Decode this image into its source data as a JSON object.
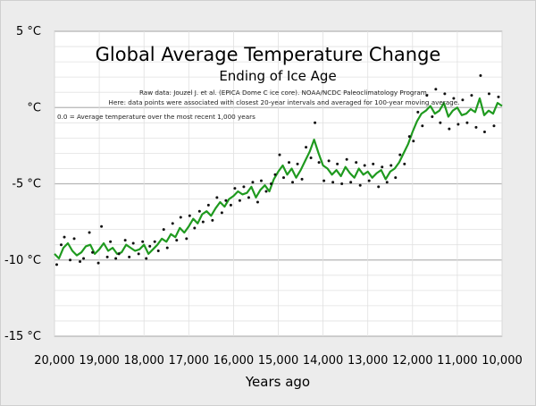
{
  "chart_data": {
    "type": "line",
    "title": "Global Average Temperature Change",
    "subtitle": "Ending of Ice Age",
    "notes": [
      "Raw data: Jouzel J. et al. (EPICA Dome C ice core). NOAA/NCDC Paleoclimatology Program.",
      "Here: data points were associated with closest 20-year intervals and averaged for 100-year moving average."
    ],
    "baseline_note": "0.0 = Average temperature over the most recent 1,000 years",
    "xlabel": "Years ago",
    "ylabel": "",
    "xlim": [
      20000,
      10000
    ],
    "ylim": [
      -15,
      5
    ],
    "x_reversed": true,
    "x_ticks": [
      20000,
      19000,
      18000,
      17000,
      16000,
      15000,
      14000,
      13000,
      12000,
      11000,
      10000
    ],
    "x_tick_labels": [
      "20,000",
      "19,000",
      "18,000",
      "17,000",
      "16,000",
      "15,000",
      "14,000",
      "13,000",
      "12,000",
      "11,000",
      "10,000"
    ],
    "y_ticks": [
      5,
      0,
      -5,
      -10,
      -15
    ],
    "y_tick_labels": [
      "5 °C",
      "°C",
      "-5 °C",
      "-10 °C",
      "-15 °C"
    ],
    "grid": true,
    "legend": "none",
    "series": [
      {
        "kind": "line",
        "color": "#1f9a1f",
        "x": [
          20000,
          19900,
          19800,
          19700,
          19600,
          19500,
          19400,
          19300,
          19200,
          19100,
          19000,
          18900,
          18800,
          18700,
          18600,
          18500,
          18400,
          18300,
          18200,
          18100,
          18000,
          17900,
          17800,
          17700,
          17600,
          17500,
          17400,
          17300,
          17200,
          17100,
          17000,
          16900,
          16800,
          16700,
          16600,
          16500,
          16400,
          16300,
          16200,
          16100,
          16000,
          15900,
          15800,
          15700,
          15600,
          15500,
          15400,
          15300,
          15200,
          15100,
          15000,
          14900,
          14800,
          14700,
          14600,
          14500,
          14400,
          14300,
          14200,
          14100,
          14000,
          13900,
          13800,
          13700,
          13600,
          13500,
          13400,
          13300,
          13200,
          13100,
          13000,
          12900,
          12800,
          12700,
          12600,
          12500,
          12400,
          12300,
          12200,
          12100,
          12000,
          11900,
          11800,
          11700,
          11600,
          11500,
          11400,
          11300,
          11200,
          11100,
          11000,
          10900,
          10800,
          10700,
          10600,
          10500,
          10400,
          10300,
          10200,
          10100,
          10000
        ],
        "y": [
          -9.6,
          -9.9,
          -9.2,
          -8.9,
          -9.4,
          -9.7,
          -9.5,
          -9.1,
          -9.0,
          -9.6,
          -9.3,
          -8.9,
          -9.4,
          -9.2,
          -9.6,
          -9.5,
          -9.0,
          -9.2,
          -9.4,
          -9.3,
          -9.0,
          -9.6,
          -9.3,
          -9.0,
          -8.6,
          -8.8,
          -8.3,
          -8.5,
          -7.9,
          -8.2,
          -7.8,
          -7.3,
          -7.6,
          -7.0,
          -6.8,
          -7.1,
          -6.6,
          -6.2,
          -6.5,
          -6.0,
          -5.8,
          -5.5,
          -5.7,
          -5.6,
          -5.2,
          -5.9,
          -5.4,
          -5.1,
          -5.5,
          -4.7,
          -4.2,
          -3.8,
          -4.4,
          -4.0,
          -4.6,
          -4.1,
          -3.5,
          -2.9,
          -2.1,
          -3.0,
          -3.8,
          -4.0,
          -4.4,
          -4.1,
          -4.5,
          -3.9,
          -4.3,
          -4.6,
          -4.0,
          -4.4,
          -4.2,
          -4.6,
          -4.3,
          -4.1,
          -4.7,
          -4.2,
          -4.0,
          -3.6,
          -3.0,
          -2.4,
          -1.6,
          -0.9,
          -0.4,
          -0.2,
          0.1,
          -0.4,
          -0.2,
          0.3,
          -0.6,
          -0.2,
          0.0,
          -0.5,
          -0.4,
          -0.1,
          -0.3,
          0.6,
          -0.5,
          -0.2,
          -0.4,
          0.3,
          0.1
        ]
      },
      {
        "kind": "scatter",
        "color": "#111111",
        "x": [
          19950,
          19850,
          19780,
          19650,
          19560,
          19430,
          19350,
          19220,
          19150,
          19020,
          18950,
          18820,
          18750,
          18630,
          18560,
          18420,
          18330,
          18240,
          18120,
          18030,
          17950,
          17870,
          17760,
          17680,
          17560,
          17480,
          17360,
          17270,
          17180,
          17050,
          16980,
          16870,
          16760,
          16680,
          16560,
          16470,
          16370,
          16260,
          16170,
          16060,
          15970,
          15860,
          15770,
          15660,
          15570,
          15460,
          15380,
          15270,
          15160,
          15070,
          14970,
          14880,
          14760,
          14680,
          14570,
          14470,
          14380,
          14270,
          14180,
          14090,
          13980,
          13870,
          13780,
          13680,
          13580,
          13470,
          13380,
          13260,
          13170,
          13070,
          12970,
          12880,
          12760,
          12680,
          12570,
          12480,
          12380,
          12280,
          12180,
          12070,
          11980,
          11880,
          11780,
          11680,
          11560,
          11480,
          11380,
          11280,
          11180,
          11080,
          10980,
          10880,
          10780,
          10680,
          10580,
          10480,
          10390,
          10290,
          10180,
          10080
        ],
        "y": [
          -10.3,
          -9.0,
          -8.5,
          -10.0,
          -8.6,
          -10.1,
          -9.9,
          -8.2,
          -9.5,
          -10.2,
          -7.8,
          -9.8,
          -8.8,
          -9.9,
          -9.6,
          -8.7,
          -9.8,
          -8.9,
          -9.6,
          -8.8,
          -9.9,
          -9.1,
          -8.8,
          -9.4,
          -8.0,
          -9.2,
          -7.6,
          -8.7,
          -7.2,
          -8.6,
          -7.1,
          -7.9,
          -6.8,
          -7.5,
          -6.4,
          -7.4,
          -5.9,
          -6.9,
          -6.1,
          -6.4,
          -5.3,
          -6.1,
          -5.2,
          -5.9,
          -4.9,
          -6.2,
          -4.8,
          -5.5,
          -5.0,
          -4.4,
          -3.1,
          -4.6,
          -3.6,
          -4.9,
          -3.7,
          -4.7,
          -2.6,
          -3.3,
          -1.0,
          -3.6,
          -4.8,
          -3.5,
          -4.9,
          -3.7,
          -5.0,
          -3.4,
          -4.9,
          -3.6,
          -5.1,
          -3.8,
          -4.8,
          -3.7,
          -5.2,
          -3.9,
          -4.9,
          -3.8,
          -4.6,
          -3.1,
          -3.7,
          -1.9,
          -2.2,
          -0.3,
          -1.2,
          0.8,
          -0.6,
          1.2,
          -1.0,
          0.9,
          -1.4,
          0.6,
          -1.1,
          0.5,
          -1.0,
          0.8,
          -1.3,
          2.1,
          -1.6,
          0.9,
          -1.2,
          0.7
        ]
      }
    ]
  }
}
